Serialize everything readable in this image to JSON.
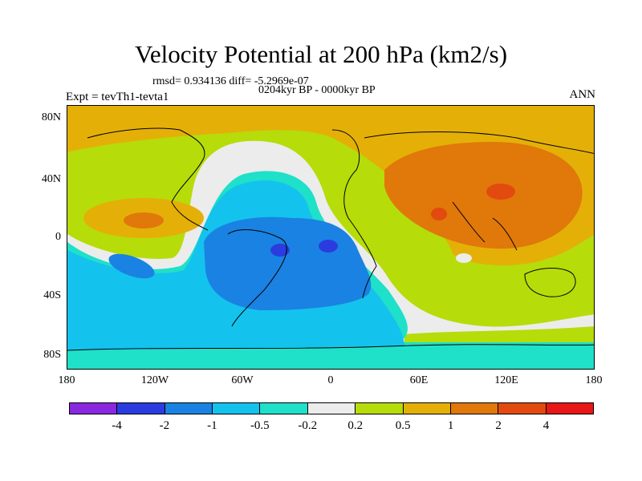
{
  "title": "Velocity Potential at 200 hPa (km2/s)",
  "stats": "rmsd= 0.934136  diff= -5.2969e-07",
  "subtitle": "0204kyr BP - 0000kyr BP",
  "left_label": "Expt = tevTh1-tevta1",
  "right_label": "ANN",
  "y_ticks": [
    "80N",
    "40N",
    "0",
    "40S",
    "80S"
  ],
  "x_ticks": [
    "180",
    "120W",
    "60W",
    "0",
    "60E",
    "120E",
    "180"
  ],
  "colorbar": {
    "colors": [
      "#8a28e0",
      "#2a3ce0",
      "#1a82e2",
      "#14c2ee",
      "#1fe0c8",
      "#ececec",
      "#b6dc0a",
      "#e4b008",
      "#e0780a",
      "#e24a10",
      "#e81616"
    ],
    "labels": [
      "-4",
      "-2",
      "-1",
      "-0.5",
      "-0.2",
      "0.2",
      "0.5",
      "1",
      "2",
      "4"
    ]
  }
}
